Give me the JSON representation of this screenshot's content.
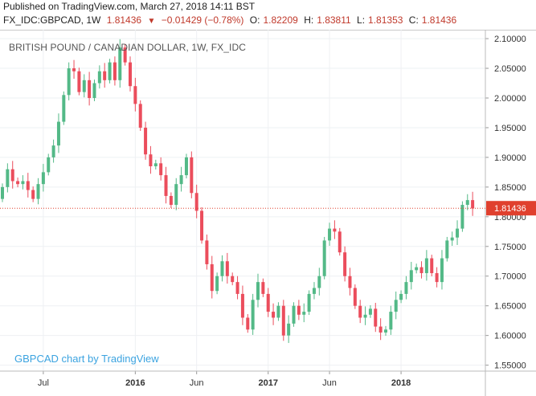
{
  "header": {
    "published": "Published on TradingView.com, March 27, 2018 14:11 BST",
    "symbol": "FX_IDC:GBPCAD, 1W",
    "last": "1.81436",
    "change": "−0.01429 (−0.78%)",
    "open_label": "O:",
    "open": "1.82209",
    "high_label": "H:",
    "high": "1.83811",
    "low_label": "L:",
    "low": "1.81353",
    "close_label": "C:",
    "close": "1.81436"
  },
  "chart_title": "BRITISH POUND / CANADIAN DOLLAR, 1W, FX_IDC",
  "watermark": "GBPCAD chart by TradingView",
  "colors": {
    "up": "#53b987",
    "down": "#eb4d5c",
    "price_line": "#e0402e",
    "axis_text": "#333333",
    "grid": "#eef0f3"
  },
  "chart_data": {
    "type": "candlestick",
    "series": [
      {
        "name": "GBPCAD",
        "values": [
          1.85,
          1.88,
          1.86,
          1.855,
          1.86,
          1.845,
          1.83,
          1.855,
          1.875,
          1.9,
          1.92,
          1.96,
          2.005,
          2.05,
          2.045,
          2.01,
          2.03,
          2.0,
          2.025,
          2.045,
          2.03,
          2.06,
          2.03,
          2.085,
          2.06,
          2.02,
          1.99,
          1.95,
          1.905,
          1.885,
          1.89,
          1.87,
          1.835,
          1.82,
          1.855,
          1.87,
          1.9,
          1.84,
          1.81,
          1.76,
          1.72,
          1.675,
          1.7,
          1.725,
          1.7,
          1.69,
          1.67,
          1.63,
          1.61,
          1.66,
          1.69,
          1.67,
          1.64,
          1.63,
          1.65,
          1.6,
          1.62,
          1.65,
          1.635,
          1.64,
          1.67,
          1.68,
          1.7,
          1.76,
          1.78,
          1.775,
          1.74,
          1.7,
          1.68,
          1.65,
          1.63,
          1.635,
          1.645,
          1.615,
          1.605,
          1.61,
          1.64,
          1.66,
          1.67,
          1.69,
          1.71,
          1.715,
          1.705,
          1.73,
          1.705,
          1.69,
          1.73,
          1.76,
          1.765,
          1.78,
          1.82,
          1.828,
          1.814
        ]
      }
    ],
    "x_tick_labels": [
      "Jul",
      "2016",
      "Jun",
      "2017",
      "Jun",
      "2018"
    ],
    "x_tick_index": [
      8,
      26,
      38,
      52,
      64,
      78
    ],
    "y_ticks": [
      "1.55000",
      "1.60000",
      "1.65000",
      "1.70000",
      "1.75000",
      "1.80000",
      "1.85000",
      "1.90000",
      "1.95000",
      "2.00000",
      "2.05000",
      "2.10000"
    ],
    "ylim": [
      1.54,
      2.115
    ],
    "last_price_label": "1.81436",
    "last_price": 1.81436,
    "grid": true
  }
}
